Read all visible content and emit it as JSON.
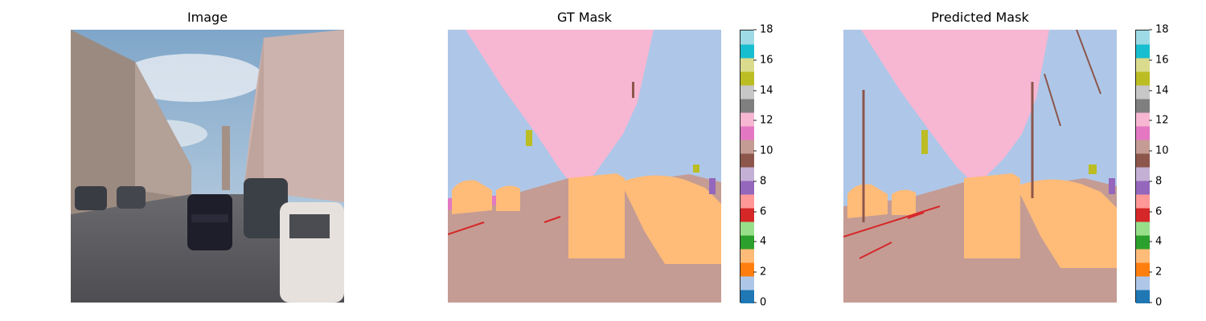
{
  "titles": {
    "image": "Image",
    "gt": "GT Mask",
    "pred": "Predicted Mask"
  },
  "colorbar": {
    "ticks": [
      "0",
      "2",
      "4",
      "6",
      "8",
      "10",
      "12",
      "14",
      "16",
      "18"
    ],
    "colors": [
      "#1f77b4",
      "#aec7e8",
      "#ff7f0e",
      "#ffbb78",
      "#2ca02c",
      "#98df8a",
      "#d62728",
      "#ff9896",
      "#9467bd",
      "#c5b0d5",
      "#8c564b",
      "#c49c94",
      "#e377c2",
      "#f7b6d2",
      "#7f7f7f",
      "#c7c7c7",
      "#bcbd22",
      "#dbdb8d",
      "#17becf",
      "#9edae5"
    ]
  },
  "mask_colors": {
    "sky": "#aec7e8",
    "building": "#f7b6d2",
    "road": "#c49c94",
    "car": "#ffbb78",
    "sign": "#bcbd22",
    "pole": "#8c564b",
    "lane": "#d62728",
    "veg": "#9467bd",
    "sidewalk": "#e377c2"
  }
}
